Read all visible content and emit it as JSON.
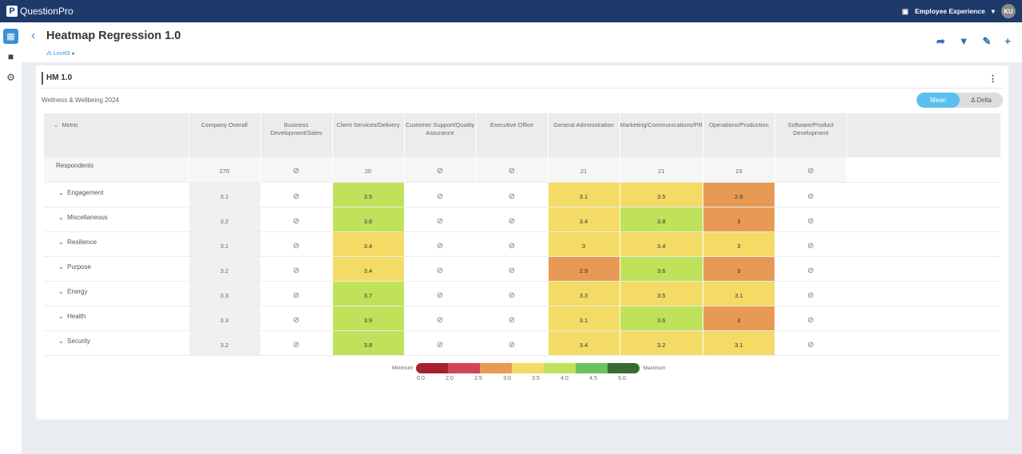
{
  "app": {
    "brand": "QuestionPro",
    "workspace": "Employee Experience",
    "user_initials": "KU"
  },
  "header": {
    "title": "Heatmap Regression 1.0",
    "level": "Level3"
  },
  "card": {
    "title": "HM 1.0",
    "subtitle": "Wellness & Wellbeing 2024",
    "toggle": {
      "mean": "Mean",
      "delta": "Δ Delta",
      "selected": "Mean"
    }
  },
  "table": {
    "metric_header": "Metric",
    "columns": [
      "Company Overall",
      "Business Development/Sales",
      "Client Services/Delivery",
      "Customer Support/Quality Assurance",
      "Executive Office",
      "General Administration",
      "Marketing/Communications/PR",
      "Operations/Production",
      "Software/Product Development"
    ],
    "respondents": {
      "label": "Respondents",
      "values": [
        "270",
        null,
        "20",
        null,
        null,
        "21",
        "21",
        "23",
        null
      ]
    },
    "rows": [
      {
        "label": "Engagement",
        "overall": "3.1",
        "cells": [
          null,
          {
            "v": "3.5",
            "c": "g"
          },
          null,
          null,
          {
            "v": "3.1",
            "c": "y"
          },
          {
            "v": "3.5",
            "c": "y"
          },
          {
            "v": "2.8",
            "c": "o"
          },
          null
        ]
      },
      {
        "label": "Miscellaneous",
        "overall": "3.2",
        "cells": [
          null,
          {
            "v": "3.6",
            "c": "g"
          },
          null,
          null,
          {
            "v": "3.4",
            "c": "y"
          },
          {
            "v": "3.8",
            "c": "g"
          },
          {
            "v": "3",
            "c": "o"
          },
          null
        ]
      },
      {
        "label": "Resilience",
        "overall": "3.1",
        "cells": [
          null,
          {
            "v": "3.4",
            "c": "y"
          },
          null,
          null,
          {
            "v": "3",
            "c": "y"
          },
          {
            "v": "3.4",
            "c": "y"
          },
          {
            "v": "3",
            "c": "y"
          },
          null
        ]
      },
      {
        "label": "Purpose",
        "overall": "3.2",
        "cells": [
          null,
          {
            "v": "3.4",
            "c": "y"
          },
          null,
          null,
          {
            "v": "2.9",
            "c": "o"
          },
          {
            "v": "3.6",
            "c": "g"
          },
          {
            "v": "3",
            "c": "o"
          },
          null
        ]
      },
      {
        "label": "Energy",
        "overall": "3.3",
        "cells": [
          null,
          {
            "v": "3.7",
            "c": "g"
          },
          null,
          null,
          {
            "v": "3.3",
            "c": "y"
          },
          {
            "v": "3.5",
            "c": "y"
          },
          {
            "v": "3.1",
            "c": "y"
          },
          null
        ]
      },
      {
        "label": "Health",
        "overall": "3.3",
        "cells": [
          null,
          {
            "v": "3.9",
            "c": "g"
          },
          null,
          null,
          {
            "v": "3.1",
            "c": "y"
          },
          {
            "v": "3.6",
            "c": "g"
          },
          {
            "v": "3",
            "c": "o"
          },
          null
        ]
      },
      {
        "label": "Security",
        "overall": "3.2",
        "cells": [
          null,
          {
            "v": "3.8",
            "c": "g"
          },
          null,
          null,
          {
            "v": "3.4",
            "c": "y"
          },
          {
            "v": "3.2",
            "c": "y"
          },
          {
            "v": "3.1",
            "c": "y"
          },
          null
        ]
      }
    ]
  },
  "legend": {
    "min_label": "Minimum",
    "max_label": "Maximum",
    "ticks": [
      "0.0",
      "2.0",
      "2.5",
      "3.0",
      "3.5",
      "4.0",
      "4.5",
      "5.0"
    ],
    "colors": [
      "#a5212c",
      "#d24457",
      "#e89a55",
      "#f3db66",
      "#bfe25a",
      "#6cc35e",
      "#3a6b33"
    ]
  }
}
